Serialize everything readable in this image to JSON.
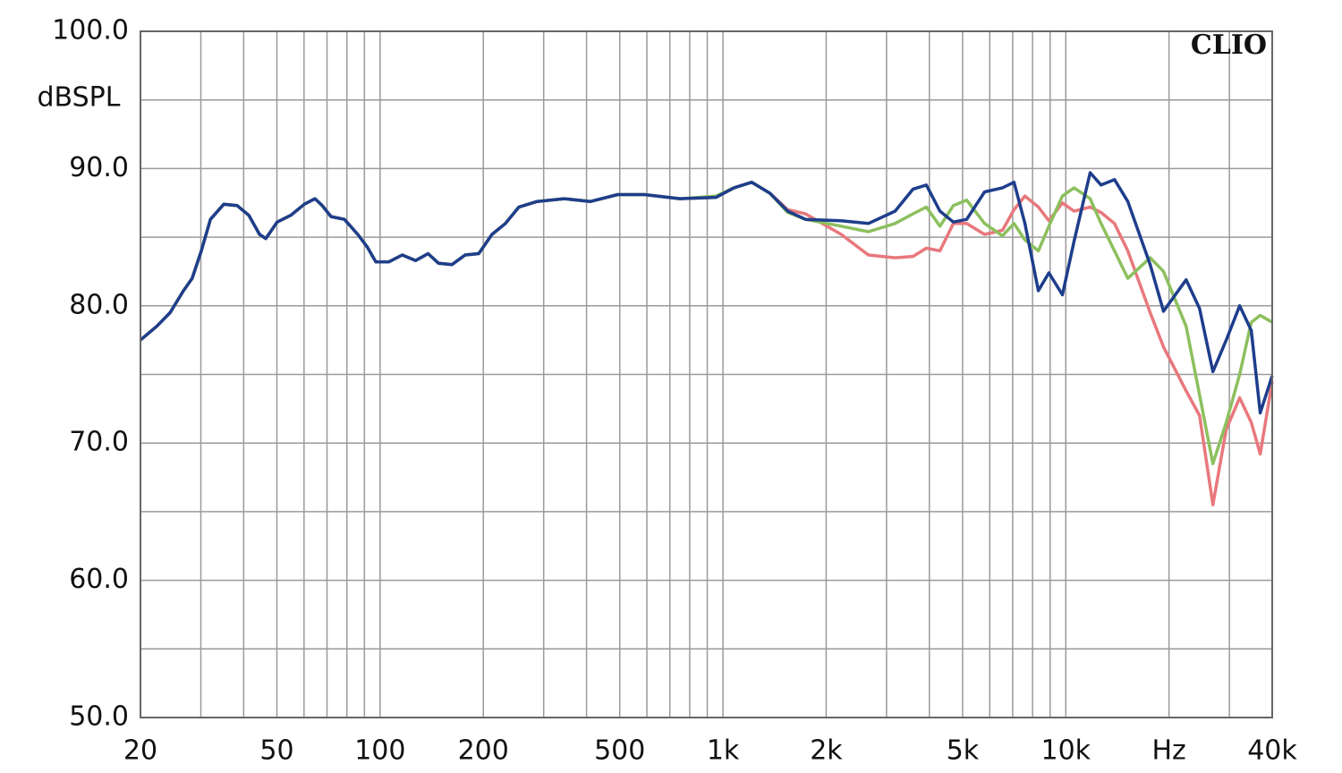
{
  "chart_data": {
    "type": "line",
    "y_label": "dBSPL",
    "annotation": "CLIO",
    "log_x": true,
    "grid": true,
    "xlim": [
      20,
      40000
    ],
    "ylim": [
      50,
      100
    ],
    "xticks": [
      20,
      50,
      100,
      200,
      500,
      {
        "value": 1000,
        "label": "1k"
      },
      {
        "value": 2000,
        "label": "2k"
      },
      {
        "value": 5000,
        "label": "5k"
      },
      {
        "value": 10000,
        "label": "10k"
      },
      {
        "value": 20000,
        "label": "Hz"
      },
      {
        "value": 40000,
        "label": "40k"
      }
    ],
    "yticks": [
      {
        "value": 50,
        "label": "50.0"
      },
      {
        "value": 60,
        "label": "60.0"
      },
      {
        "value": 70,
        "label": "70.0"
      },
      {
        "value": 80,
        "label": "80.0"
      },
      {
        "value": 90,
        "label": "90.0"
      },
      {
        "value": 100,
        "label": "100.0"
      }
    ],
    "x": [
      20,
      22.3,
      24.4,
      26.7,
      28.3,
      30.1,
      32,
      35,
      38.3,
      41.4,
      44.5,
      46.4,
      50.1,
      54.9,
      60.1,
      64.6,
      67.8,
      71.9,
      78.7,
      86.1,
      91.6,
      97.2,
      106,
      116,
      127,
      138,
      148,
      162,
      177,
      194,
      212,
      232,
      254,
      287,
      344,
      411,
      493,
      590,
      750,
      955,
      1077,
      1214,
      1371,
      1545,
      1742,
      2214,
      2655,
      3178,
      3583,
      3920,
      4295,
      4700,
      5140,
      5796,
      6535,
      7064,
      7600,
      8315,
      8930,
      9775,
      10570,
      11780,
      12670,
      13870,
      15170,
      17620,
      19280,
      22440,
      24550,
      26860,
      29380,
      32140,
      34760,
      36900,
      40000
    ],
    "series": [
      {
        "color": "#e8787c",
        "values": [
          77.5,
          78.5,
          79.5,
          81.1,
          82,
          84,
          86.3,
          87.4,
          87.3,
          86.6,
          85.2,
          84.9,
          86.1,
          86.6,
          87.4,
          87.8,
          87.3,
          86.5,
          86.3,
          85.2,
          84.3,
          83.2,
          83.2,
          83.7,
          83.3,
          83.8,
          83.1,
          83,
          83.7,
          83.8,
          85.2,
          86,
          87.2,
          87.6,
          87.8,
          87.6,
          88.1,
          88.1,
          87.8,
          87.9,
          88.6,
          89,
          88.2,
          87,
          86.7,
          85.2,
          83.7,
          83.5,
          83.6,
          84.2,
          84,
          86,
          86,
          85.2,
          85.5,
          87,
          88,
          87.2,
          86.2,
          87.5,
          86.9,
          87.2,
          86.8,
          86,
          84,
          79.5,
          77,
          73.8,
          72,
          65.5,
          71,
          73.3,
          71.5,
          69.2,
          74.5
        ]
      },
      {
        "color": "#8cc05e",
        "values": [
          77.5,
          78.5,
          79.5,
          81.1,
          82,
          84,
          86.3,
          87.4,
          87.3,
          86.6,
          85.2,
          84.9,
          86.1,
          86.6,
          87.4,
          87.8,
          87.3,
          86.5,
          86.3,
          85.2,
          84.3,
          83.2,
          83.2,
          83.7,
          83.3,
          83.8,
          83.1,
          83,
          83.7,
          83.8,
          85.2,
          86,
          87.2,
          87.6,
          87.8,
          87.6,
          88.1,
          88.1,
          87.8,
          88,
          88.6,
          89,
          88.2,
          86.8,
          86.3,
          85.8,
          85.4,
          86,
          86.7,
          87.2,
          85.8,
          87.3,
          87.7,
          86,
          85.1,
          86,
          84.8,
          84,
          85.8,
          88,
          88.6,
          87.8,
          86,
          84,
          82,
          83.5,
          82.5,
          78.5,
          73.5,
          68.5,
          71.5,
          75,
          78.8,
          79.3,
          78.8
        ]
      },
      {
        "color": "#1e3e8c",
        "values": [
          77.5,
          78.5,
          79.5,
          81.1,
          82,
          84,
          86.3,
          87.4,
          87.3,
          86.6,
          85.2,
          84.9,
          86.1,
          86.6,
          87.4,
          87.8,
          87.3,
          86.5,
          86.3,
          85.2,
          84.3,
          83.2,
          83.2,
          83.7,
          83.3,
          83.8,
          83.1,
          83,
          83.7,
          83.8,
          85.2,
          86,
          87.2,
          87.6,
          87.8,
          87.6,
          88.1,
          88.1,
          87.8,
          87.9,
          88.6,
          89,
          88.2,
          86.9,
          86.3,
          86.2,
          86,
          86.9,
          88.5,
          88.8,
          86.9,
          86.1,
          86.3,
          88.3,
          88.6,
          89,
          86,
          81.1,
          82.4,
          80.8,
          84.7,
          89.7,
          88.8,
          89.2,
          87.6,
          83,
          79.6,
          81.9,
          79.8,
          75.2,
          77.5,
          80,
          78.2,
          72.2,
          74.9
        ]
      }
    ]
  }
}
